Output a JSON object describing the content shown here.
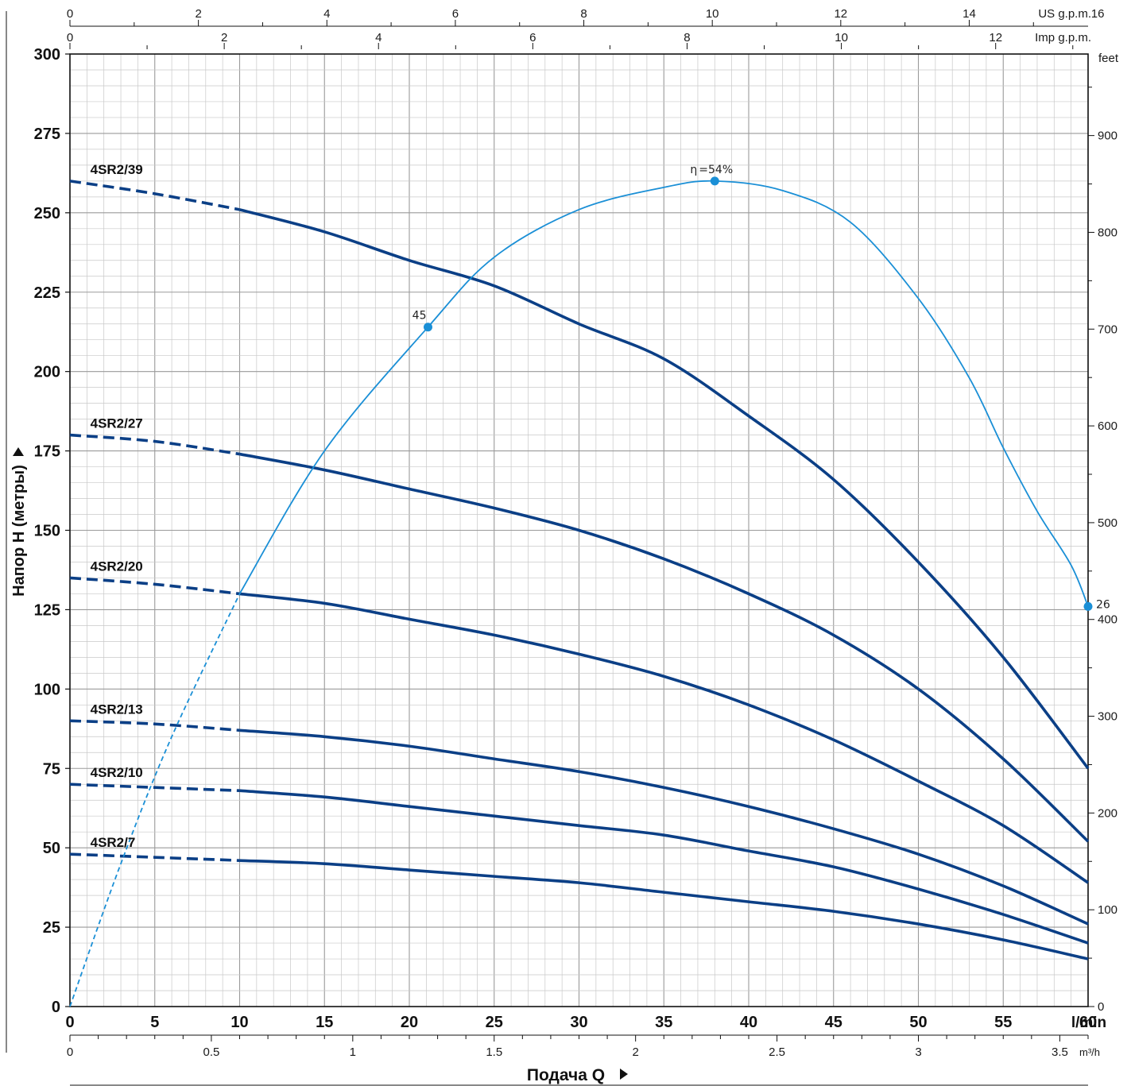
{
  "chart_data": {
    "type": "line",
    "title": "",
    "xlabel": "Подача Q",
    "ylabel": "Напор H (метры)",
    "x_unit_label": "l/min",
    "xlim": [
      0,
      60
    ],
    "ylim": [
      0,
      300
    ],
    "grid": true,
    "x_ticks": [
      "0",
      "5",
      "10",
      "15",
      "20",
      "25",
      "30",
      "35",
      "40",
      "45",
      "50",
      "55",
      "60"
    ],
    "y_ticks": [
      "0",
      "25",
      "50",
      "75",
      "100",
      "125",
      "150",
      "175",
      "200",
      "225",
      "250",
      "275",
      "300"
    ],
    "secondary_axes": {
      "m3h": {
        "label": "m³/h",
        "ticks": [
          "0",
          "0.5",
          "1",
          "1.5",
          "2",
          "2.5",
          "3",
          "3.5"
        ]
      },
      "us_gpm": {
        "label": "US g.p.m.",
        "ticks": [
          "0",
          "2",
          "4",
          "6",
          "8",
          "10",
          "12",
          "14",
          "16"
        ]
      },
      "imp_gpm": {
        "label": "Imp g.p.m.",
        "ticks": [
          "0",
          "2",
          "4",
          "6",
          "8",
          "10",
          "12"
        ]
      },
      "feet": {
        "label": "feet",
        "ticks": [
          "0",
          "100",
          "200",
          "300",
          "400",
          "500",
          "600",
          "700",
          "800",
          "900"
        ]
      }
    },
    "series": [
      {
        "name": "4SR2/39",
        "dashed_until_x": 10,
        "x": [
          0,
          5,
          10,
          15,
          20,
          25,
          30,
          35,
          40,
          45,
          50,
          55,
          60
        ],
        "values": [
          260,
          256,
          251,
          244,
          235,
          227,
          215,
          204,
          186,
          166,
          140,
          110,
          75
        ]
      },
      {
        "name": "4SR2/27",
        "dashed_until_x": 10,
        "x": [
          0,
          5,
          10,
          15,
          20,
          25,
          30,
          35,
          40,
          45,
          50,
          55,
          60
        ],
        "values": [
          180,
          178,
          174,
          169,
          163,
          157,
          150,
          141,
          130,
          117,
          100,
          78,
          52
        ]
      },
      {
        "name": "4SR2/20",
        "dashed_until_x": 10,
        "x": [
          0,
          5,
          10,
          15,
          20,
          25,
          30,
          35,
          40,
          45,
          50,
          55,
          60
        ],
        "values": [
          135,
          133,
          130,
          127,
          122,
          117,
          111,
          104,
          95,
          84,
          71,
          57,
          39
        ]
      },
      {
        "name": "4SR2/13",
        "dashed_until_x": 10,
        "x": [
          0,
          5,
          10,
          15,
          20,
          25,
          30,
          35,
          40,
          45,
          50,
          55,
          60
        ],
        "values": [
          90,
          89,
          87,
          85,
          82,
          78,
          74,
          69,
          63,
          56,
          48,
          38,
          26
        ]
      },
      {
        "name": "4SR2/10",
        "dashed_until_x": 10,
        "x": [
          0,
          5,
          10,
          15,
          20,
          25,
          30,
          35,
          40,
          45,
          50,
          55,
          60
        ],
        "values": [
          70,
          69,
          68,
          66,
          63,
          60,
          57,
          54,
          49,
          44,
          37,
          29,
          20
        ]
      },
      {
        "name": "4SR2/7",
        "dashed_until_x": 10,
        "x": [
          0,
          5,
          10,
          15,
          20,
          25,
          30,
          35,
          40,
          45,
          50,
          55,
          60
        ],
        "values": [
          48,
          47,
          46,
          45,
          43,
          41,
          39,
          36,
          33,
          30,
          26,
          21,
          15
        ]
      }
    ],
    "efficiency_curve": {
      "dashed_until_x": 10,
      "x": [
        0,
        3,
        6,
        10,
        15,
        21.1,
        25,
        30,
        35,
        38,
        42,
        46,
        50,
        53,
        55,
        57,
        59,
        60
      ],
      "y": [
        0,
        45,
        85,
        130,
        175,
        214,
        236,
        251,
        258,
        260,
        257,
        247,
        223,
        198,
        176,
        156,
        139,
        126
      ],
      "markers": [
        {
          "x": 21.1,
          "y": 214,
          "label": "45"
        },
        {
          "x": 38,
          "y": 260,
          "label": "=54%",
          "symbol": "η"
        },
        {
          "x": 60,
          "y": 126,
          "label": "26"
        }
      ]
    },
    "colors": {
      "pump_curves": "#0b3f86",
      "efficiency": "#1a8fd6",
      "grid_minor": "#c8c8c8",
      "grid_major": "#9a9a9a"
    }
  }
}
